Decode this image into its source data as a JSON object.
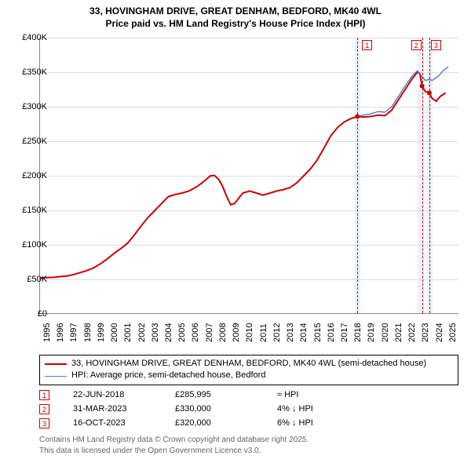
{
  "title": {
    "line1": "33, HOVINGHAM DRIVE, GREAT DENHAM, BEDFORD, MK40 4WL",
    "line2": "Price paid vs. HM Land Registry's House Price Index (HPI)"
  },
  "chart": {
    "type": "line",
    "background_color": "#ffffff",
    "grid_color": "#dddddd",
    "axis_color": "#888888",
    "shaded_region_color": "#dbe7f5",
    "ref_color": "#cc0000",
    "x_domain": [
      1995,
      2026
    ],
    "y_domain": [
      0,
      400000
    ],
    "y_ticks": [
      0,
      50000,
      100000,
      150000,
      200000,
      250000,
      300000,
      350000,
      400000
    ],
    "y_tick_labels": [
      "£0",
      "£50K",
      "£100K",
      "£150K",
      "£200K",
      "£250K",
      "£300K",
      "£350K",
      "£400K"
    ],
    "x_ticks": [
      1995,
      1996,
      1997,
      1998,
      1999,
      2000,
      2001,
      2002,
      2003,
      2004,
      2005,
      2006,
      2007,
      2008,
      2009,
      2010,
      2011,
      2012,
      2013,
      2014,
      2015,
      2016,
      2017,
      2018,
      2019,
      2020,
      2021,
      2022,
      2023,
      2024,
      2025
    ],
    "shaded_ranges": [
      [
        2018.3,
        2018.7
      ],
      [
        2022.9,
        2023.4
      ],
      [
        2023.6,
        2024.0
      ]
    ],
    "ref_markers": [
      {
        "label": "1",
        "x": 2018.47,
        "box_offset": 6
      },
      {
        "label": "2",
        "x": 2023.25,
        "box_offset": -14
      },
      {
        "label": "3",
        "x": 2023.79,
        "box_offset": 2
      }
    ],
    "series_main": {
      "label": "33, HOVINGHAM DRIVE, GREAT DENHAM, BEDFORD, MK40 4WL (semi-detached house)",
      "color": "#cc0000",
      "width": 2,
      "points": [
        [
          1995.0,
          52000
        ],
        [
          1995.5,
          52500
        ],
        [
          1996.0,
          53000
        ],
        [
          1996.5,
          54000
        ],
        [
          1997.0,
          55000
        ],
        [
          1997.5,
          57000
        ],
        [
          1998.0,
          60000
        ],
        [
          1998.5,
          63000
        ],
        [
          1999.0,
          67000
        ],
        [
          1999.5,
          73000
        ],
        [
          2000.0,
          80000
        ],
        [
          2000.5,
          88000
        ],
        [
          2001.0,
          95000
        ],
        [
          2001.5,
          103000
        ],
        [
          2002.0,
          115000
        ],
        [
          2002.5,
          128000
        ],
        [
          2003.0,
          140000
        ],
        [
          2003.5,
          150000
        ],
        [
          2004.0,
          160000
        ],
        [
          2004.5,
          170000
        ],
        [
          2005.0,
          173000
        ],
        [
          2005.5,
          175000
        ],
        [
          2006.0,
          178000
        ],
        [
          2006.5,
          183000
        ],
        [
          2007.0,
          190000
        ],
        [
          2007.3,
          195000
        ],
        [
          2007.6,
          200000
        ],
        [
          2007.9,
          200500
        ],
        [
          2008.2,
          195000
        ],
        [
          2008.5,
          185000
        ],
        [
          2008.8,
          170000
        ],
        [
          2009.1,
          158000
        ],
        [
          2009.4,
          160000
        ],
        [
          2009.7,
          168000
        ],
        [
          2010.0,
          175000
        ],
        [
          2010.5,
          178000
        ],
        [
          2011.0,
          175000
        ],
        [
          2011.5,
          172000
        ],
        [
          2012.0,
          175000
        ],
        [
          2012.5,
          178000
        ],
        [
          2013.0,
          180000
        ],
        [
          2013.5,
          183000
        ],
        [
          2014.0,
          190000
        ],
        [
          2014.5,
          200000
        ],
        [
          2015.0,
          210000
        ],
        [
          2015.5,
          223000
        ],
        [
          2016.0,
          240000
        ],
        [
          2016.5,
          258000
        ],
        [
          2017.0,
          270000
        ],
        [
          2017.5,
          278000
        ],
        [
          2018.0,
          283000
        ],
        [
          2018.47,
          285995
        ],
        [
          2019.0,
          285000
        ],
        [
          2019.5,
          286000
        ],
        [
          2020.0,
          288000
        ],
        [
          2020.5,
          287000
        ],
        [
          2021.0,
          295000
        ],
        [
          2021.5,
          310000
        ],
        [
          2022.0,
          325000
        ],
        [
          2022.5,
          340000
        ],
        [
          2022.9,
          350000
        ],
        [
          2023.1,
          348000
        ],
        [
          2023.25,
          330000
        ],
        [
          2023.5,
          322000
        ],
        [
          2023.79,
          320000
        ],
        [
          2024.0,
          312000
        ],
        [
          2024.3,
          308000
        ],
        [
          2024.6,
          315000
        ],
        [
          2025.0,
          320000
        ]
      ]
    },
    "series_hpi": {
      "label": "HPI: Average price, semi-detached house, Bedford",
      "color": "#4a7bc8",
      "width": 1.4,
      "points": [
        [
          2018.47,
          285995
        ],
        [
          2019.0,
          288000
        ],
        [
          2019.5,
          290000
        ],
        [
          2020.0,
          293000
        ],
        [
          2020.5,
          292000
        ],
        [
          2021.0,
          300000
        ],
        [
          2021.5,
          315000
        ],
        [
          2022.0,
          330000
        ],
        [
          2022.5,
          344000
        ],
        [
          2022.9,
          352000
        ],
        [
          2023.25,
          344000
        ],
        [
          2023.5,
          338000
        ],
        [
          2023.79,
          340000
        ],
        [
          2024.0,
          338000
        ],
        [
          2024.5,
          345000
        ],
        [
          2024.8,
          352000
        ],
        [
          2025.2,
          358000
        ]
      ]
    },
    "sale_points": [
      {
        "x": 2018.47,
        "y": 285995
      },
      {
        "x": 2023.25,
        "y": 330000
      },
      {
        "x": 2023.79,
        "y": 320000
      }
    ],
    "sale_point_color": "#cc0000",
    "sale_point_radius": 3
  },
  "legend": {
    "items": [
      {
        "color": "#cc0000",
        "width": 2,
        "text": "33, HOVINGHAM DRIVE, GREAT DENHAM, BEDFORD, MK40 4WL (semi-detached house)"
      },
      {
        "color": "#4a7bc8",
        "width": 1.4,
        "text": "HPI: Average price, semi-detached house, Bedford"
      }
    ]
  },
  "transactions": [
    {
      "ref": "1",
      "date": "22-JUN-2018",
      "price": "£285,995",
      "diff": "≈ HPI"
    },
    {
      "ref": "2",
      "date": "31-MAR-2023",
      "price": "£330,000",
      "diff": "4% ↓ HPI"
    },
    {
      "ref": "3",
      "date": "16-OCT-2023",
      "price": "£320,000",
      "diff": "6% ↓ HPI"
    }
  ],
  "footer": {
    "line1": "Contains HM Land Registry data © Crown copyright and database right 2025.",
    "line2": "This data is licensed under the Open Government Licence v3.0."
  }
}
